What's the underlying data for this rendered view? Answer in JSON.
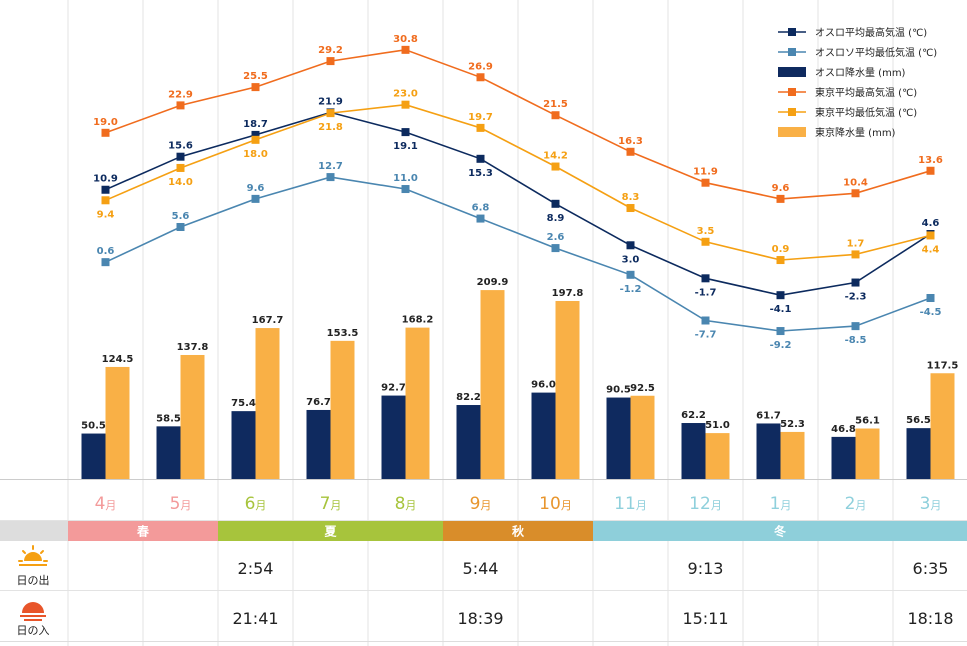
{
  "chart_data": {
    "type": "bar+line",
    "categories": [
      "4",
      "5",
      "6",
      "7",
      "8",
      "9",
      "10",
      "11",
      "12",
      "1",
      "2",
      "3"
    ],
    "month_suffix": "月",
    "month_colors": [
      "#f39a9a",
      "#f39a9a",
      "#a7c43c",
      "#a7c43c",
      "#a7c43c",
      "#e8962e",
      "#e8962e",
      "#8fd0dc",
      "#8fd0dc",
      "#8fd0dc",
      "#8fd0dc",
      "#8fd0dc"
    ],
    "line_series": [
      {
        "name": "オスロ平均最高気温 (℃)",
        "color": "#0c2a5e",
        "label_pos": "mixed",
        "values": [
          10.9,
          15.6,
          18.7,
          21.9,
          19.1,
          15.3,
          8.9,
          3.0,
          -1.7,
          -4.1,
          -2.3,
          4.6
        ]
      },
      {
        "name": "オスロソ平均最低気温 (℃)",
        "color": "#4a86b0",
        "values": [
          0.6,
          5.6,
          9.6,
          12.7,
          11.0,
          6.8,
          2.6,
          -1.2,
          -7.7,
          -9.2,
          -8.5,
          -4.5
        ]
      },
      {
        "name": "東京平均最高気温 (℃)",
        "color": "#f06c1e",
        "values": [
          19.0,
          22.9,
          25.5,
          29.2,
          30.8,
          26.9,
          21.5,
          16.3,
          11.9,
          9.6,
          10.4,
          13.6
        ]
      },
      {
        "name": "東京平均最低気温 (℃)",
        "color": "#f5a013",
        "values": [
          9.4,
          14.0,
          18.0,
          21.8,
          23.0,
          19.7,
          14.2,
          8.3,
          3.5,
          0.9,
          1.7,
          4.4
        ]
      }
    ],
    "bar_series": [
      {
        "name": "オスロ降水量 (mm)",
        "color": "#0f2a5f",
        "values": [
          50.5,
          58.5,
          75.4,
          76.7,
          92.7,
          82.2,
          96.0,
          90.5,
          62.2,
          61.7,
          46.8,
          56.5
        ]
      },
      {
        "name": "東京降水量 (mm)",
        "color": "#f9b046",
        "values": [
          124.5,
          137.8,
          167.7,
          153.5,
          168.2,
          209.9,
          197.8,
          92.5,
          51.0,
          52.3,
          56.1,
          117.5
        ]
      }
    ],
    "temp_range": [
      -10,
      31
    ],
    "precip_range": [
      0,
      210
    ],
    "grid": "vertical",
    "legend_position": "top-right"
  },
  "seasons": [
    {
      "label": "春",
      "color": "#f39a9a",
      "start": 1,
      "end": 2
    },
    {
      "label": "夏",
      "color": "#a7c43c",
      "start": 3,
      "end": 5
    },
    {
      "label": "秋",
      "color": "#d98d2a",
      "start": 6,
      "end": 7
    },
    {
      "label": "冬",
      "color": "#8ecfda",
      "start": 8,
      "end": 12
    }
  ],
  "sun_rows": [
    {
      "label": "日の出",
      "icon": "sunrise-icon",
      "times": [
        "",
        "",
        "2:54",
        "",
        "",
        "5:44",
        "",
        "",
        "9:13",
        "",
        "",
        "6:35"
      ]
    },
    {
      "label": "日の入",
      "icon": "sunset-icon",
      "times": [
        "",
        "",
        "21:41",
        "",
        "",
        "18:39",
        "",
        "",
        "15:11",
        "",
        "",
        "18:18"
      ]
    }
  ]
}
